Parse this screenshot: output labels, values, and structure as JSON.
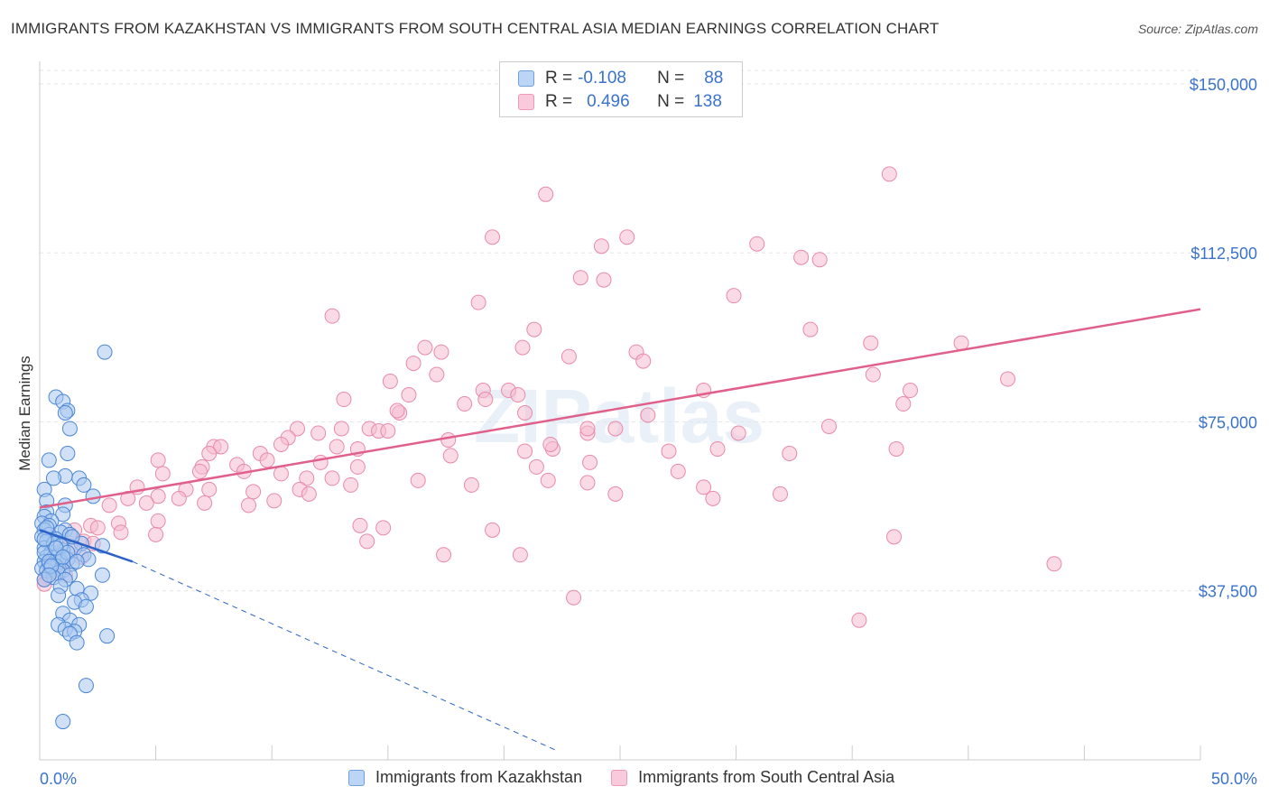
{
  "title": "IMMIGRANTS FROM KAZAKHSTAN VS IMMIGRANTS FROM SOUTH CENTRAL ASIA MEDIAN EARNINGS CORRELATION CHART",
  "source": "Source: ZipAtlas.com",
  "watermark": "ZIPatlas",
  "legend": {
    "series1": {
      "r_label": "R =",
      "r_value": "-0.108",
      "n_label": "N =",
      "n_value": "88"
    },
    "series2": {
      "r_label": "R =",
      "r_value": "0.496",
      "n_label": "N =",
      "n_value": "138"
    }
  },
  "colors": {
    "blue_fill": "#a9c8f0",
    "blue_stroke": "#4a86d4",
    "blue_line": "#2d62c8",
    "pink_fill": "#f5bcd0",
    "pink_stroke": "#e88aa8",
    "pink_line": "#e0608a",
    "axis_text": "#3a73c9",
    "grid": "#e6e6e6"
  },
  "chart_data": {
    "type": "scatter",
    "title": "IMMIGRANTS FROM KAZAKHSTAN VS IMMIGRANTS FROM SOUTH CENTRAL ASIA MEDIAN EARNINGS CORRELATION CHART",
    "xlabel": "",
    "ylabel": "Median Earnings",
    "xlim": [
      0,
      50
    ],
    "ylim": [
      0,
      155000
    ],
    "x_tick_labels": [
      "0.0%",
      "50.0%"
    ],
    "y_ticks": [
      37500,
      75000,
      112500,
      150000
    ],
    "y_tick_labels": [
      "$37,500",
      "$75,000",
      "$112,500",
      "$150,000"
    ],
    "grid": true,
    "legend_position": "bottom",
    "series": [
      {
        "name": "Immigrants from Kazakhstan",
        "color": "blue",
        "trend": {
          "x": [
            0,
            4
          ],
          "y": [
            51000,
            44000
          ],
          "dash_x": [
            4,
            22.3
          ],
          "dash_y": [
            44000,
            2000
          ]
        },
        "points": [
          [
            2.8,
            90500
          ],
          [
            0.7,
            80500
          ],
          [
            1.0,
            79500
          ],
          [
            1.2,
            77500
          ],
          [
            1.1,
            77000
          ],
          [
            1.3,
            73500
          ],
          [
            1.2,
            68000
          ],
          [
            0.4,
            66500
          ],
          [
            1.1,
            63000
          ],
          [
            1.7,
            62500
          ],
          [
            0.6,
            62500
          ],
          [
            1.9,
            61000
          ],
          [
            0.2,
            60000
          ],
          [
            2.3,
            58500
          ],
          [
            0.3,
            57500
          ],
          [
            1.1,
            56500
          ],
          [
            0.3,
            55000
          ],
          [
            0.2,
            54000
          ],
          [
            1.0,
            54500
          ],
          [
            0.5,
            53000
          ],
          [
            0.1,
            52500
          ],
          [
            0.4,
            52000
          ],
          [
            1.1,
            51000
          ],
          [
            0.2,
            51000
          ],
          [
            0.9,
            50500
          ],
          [
            1.3,
            50000
          ],
          [
            0.4,
            50000
          ],
          [
            0.1,
            49500
          ],
          [
            0.7,
            49000
          ],
          [
            0.3,
            48500
          ],
          [
            1.8,
            48000
          ],
          [
            2.7,
            47500
          ],
          [
            1.5,
            47000
          ],
          [
            0.2,
            47000
          ],
          [
            1.0,
            46500
          ],
          [
            0.5,
            46000
          ],
          [
            0.8,
            45500
          ],
          [
            1.9,
            45500
          ],
          [
            0.3,
            45000
          ],
          [
            0.6,
            45000
          ],
          [
            1.2,
            44500
          ],
          [
            0.2,
            44000
          ],
          [
            0.9,
            44000
          ],
          [
            1.4,
            43500
          ],
          [
            0.4,
            43500
          ],
          [
            0.7,
            43000
          ],
          [
            2.1,
            44500
          ],
          [
            0.1,
            42500
          ],
          [
            0.5,
            42500
          ],
          [
            1.0,
            42000
          ],
          [
            0.3,
            42000
          ],
          [
            0.8,
            41500
          ],
          [
            1.3,
            41000
          ],
          [
            2.7,
            41000
          ],
          [
            0.6,
            40500
          ],
          [
            1.1,
            40000
          ],
          [
            0.2,
            40000
          ],
          [
            0.9,
            38500
          ],
          [
            1.6,
            38000
          ],
          [
            2.2,
            37000
          ],
          [
            0.8,
            36500
          ],
          [
            1.8,
            35500
          ],
          [
            1.5,
            35000
          ],
          [
            2.0,
            34000
          ],
          [
            1.0,
            32500
          ],
          [
            1.3,
            31000
          ],
          [
            0.8,
            30000
          ],
          [
            1.7,
            30000
          ],
          [
            1.1,
            29000
          ],
          [
            1.5,
            28500
          ],
          [
            1.3,
            28000
          ],
          [
            2.9,
            27500
          ],
          [
            1.6,
            26000
          ],
          [
            2.0,
            16500
          ],
          [
            1.0,
            8500
          ],
          [
            0.2,
            46000
          ],
          [
            0.4,
            44000
          ],
          [
            0.6,
            48000
          ],
          [
            1.4,
            49500
          ],
          [
            0.3,
            51500
          ],
          [
            0.9,
            47500
          ],
          [
            1.2,
            46000
          ],
          [
            0.5,
            43000
          ],
          [
            0.7,
            47000
          ],
          [
            1.6,
            44000
          ],
          [
            0.2,
            49000
          ],
          [
            1.0,
            45000
          ],
          [
            0.4,
            41000
          ]
        ]
      },
      {
        "name": "Immigrants from South Central Asia",
        "color": "pink",
        "trend": {
          "x": [
            0,
            50
          ],
          "y": [
            56000,
            100000
          ]
        },
        "points": [
          [
            36.6,
            130000
          ],
          [
            21.8,
            125500
          ],
          [
            19.5,
            116000
          ],
          [
            24.2,
            114000
          ],
          [
            25.3,
            116000
          ],
          [
            30.9,
            114500
          ],
          [
            32.8,
            111500
          ],
          [
            33.6,
            111000
          ],
          [
            23.3,
            107000
          ],
          [
            24.3,
            106500
          ],
          [
            29.9,
            103000
          ],
          [
            18.9,
            101500
          ],
          [
            12.6,
            98500
          ],
          [
            21.3,
            95500
          ],
          [
            33.2,
            95500
          ],
          [
            35.8,
            92500
          ],
          [
            39.7,
            92500
          ],
          [
            16.6,
            91500
          ],
          [
            20.8,
            91500
          ],
          [
            17.3,
            90500
          ],
          [
            22.8,
            89500
          ],
          [
            25.7,
            90500
          ],
          [
            26.0,
            88500
          ],
          [
            16.1,
            88000
          ],
          [
            17.1,
            85500
          ],
          [
            35.9,
            85500
          ],
          [
            41.7,
            84500
          ],
          [
            15.1,
            84000
          ],
          [
            20.2,
            82000
          ],
          [
            19.1,
            82000
          ],
          [
            28.6,
            82000
          ],
          [
            37.5,
            82000
          ],
          [
            20.6,
            81000
          ],
          [
            13.1,
            80000
          ],
          [
            15.9,
            81000
          ],
          [
            19.2,
            80000
          ],
          [
            18.3,
            79000
          ],
          [
            37.2,
            79000
          ],
          [
            15.5,
            77000
          ],
          [
            15.4,
            77500
          ],
          [
            20.9,
            77000
          ],
          [
            26.2,
            76500
          ],
          [
            11.1,
            73500
          ],
          [
            13.0,
            73500
          ],
          [
            14.2,
            73500
          ],
          [
            14.6,
            73000
          ],
          [
            15.0,
            73000
          ],
          [
            24.8,
            73500
          ],
          [
            12.0,
            72500
          ],
          [
            10.7,
            71500
          ],
          [
            17.6,
            71000
          ],
          [
            23.6,
            72500
          ],
          [
            10.4,
            70000
          ],
          [
            12.8,
            69500
          ],
          [
            7.5,
            69500
          ],
          [
            7.8,
            69500
          ],
          [
            13.7,
            69000
          ],
          [
            22.1,
            69000
          ],
          [
            29.2,
            69000
          ],
          [
            36.9,
            69000
          ],
          [
            27.1,
            68500
          ],
          [
            22.0,
            70000
          ],
          [
            9.5,
            68000
          ],
          [
            17.7,
            67500
          ],
          [
            20.9,
            68500
          ],
          [
            7.3,
            68000
          ],
          [
            23.6,
            73500
          ],
          [
            32.3,
            68000
          ],
          [
            9.8,
            66500
          ],
          [
            5.1,
            66500
          ],
          [
            12.1,
            66000
          ],
          [
            8.5,
            65500
          ],
          [
            13.7,
            65000
          ],
          [
            7.0,
            65000
          ],
          [
            23.7,
            66000
          ],
          [
            6.9,
            64000
          ],
          [
            8.8,
            64000
          ],
          [
            10.4,
            63500
          ],
          [
            5.3,
            63500
          ],
          [
            11.5,
            62500
          ],
          [
            12.6,
            62500
          ],
          [
            16.3,
            62000
          ],
          [
            21.9,
            62000
          ],
          [
            23.6,
            61500
          ],
          [
            13.4,
            61000
          ],
          [
            4.2,
            60500
          ],
          [
            11.2,
            60000
          ],
          [
            6.3,
            60000
          ],
          [
            28.6,
            60500
          ],
          [
            7.3,
            60000
          ],
          [
            9.2,
            59500
          ],
          [
            11.6,
            59000
          ],
          [
            24.8,
            59000
          ],
          [
            31.9,
            59000
          ],
          [
            29.0,
            58000
          ],
          [
            5.1,
            58500
          ],
          [
            3.8,
            58000
          ],
          [
            6.0,
            58000
          ],
          [
            10.1,
            57500
          ],
          [
            7.1,
            57000
          ],
          [
            4.6,
            57000
          ],
          [
            9.0,
            56500
          ],
          [
            3.0,
            56500
          ],
          [
            13.8,
            52000
          ],
          [
            14.8,
            51500
          ],
          [
            19.5,
            51000
          ],
          [
            5.1,
            53000
          ],
          [
            3.4,
            52500
          ],
          [
            2.2,
            52000
          ],
          [
            2.5,
            51500
          ],
          [
            1.5,
            51000
          ],
          [
            3.5,
            50500
          ],
          [
            5.0,
            50000
          ],
          [
            36.8,
            49500
          ],
          [
            14.1,
            48500
          ],
          [
            1.9,
            48500
          ],
          [
            2.3,
            48000
          ],
          [
            1.3,
            47500
          ],
          [
            17.4,
            45500
          ],
          [
            20.7,
            45500
          ],
          [
            1.8,
            45000
          ],
          [
            1.2,
            44500
          ],
          [
            43.7,
            43500
          ],
          [
            0.7,
            43000
          ],
          [
            1.0,
            42500
          ],
          [
            0.6,
            42000
          ],
          [
            0.4,
            41500
          ],
          [
            1.1,
            41000
          ],
          [
            0.3,
            40500
          ],
          [
            0.2,
            40000
          ],
          [
            0.2,
            39000
          ],
          [
            23.0,
            36000
          ],
          [
            35.3,
            31000
          ],
          [
            21.4,
            65000
          ],
          [
            18.6,
            61000
          ],
          [
            27.5,
            64000
          ],
          [
            30.1,
            72500
          ],
          [
            34.0,
            74000
          ]
        ]
      }
    ]
  }
}
